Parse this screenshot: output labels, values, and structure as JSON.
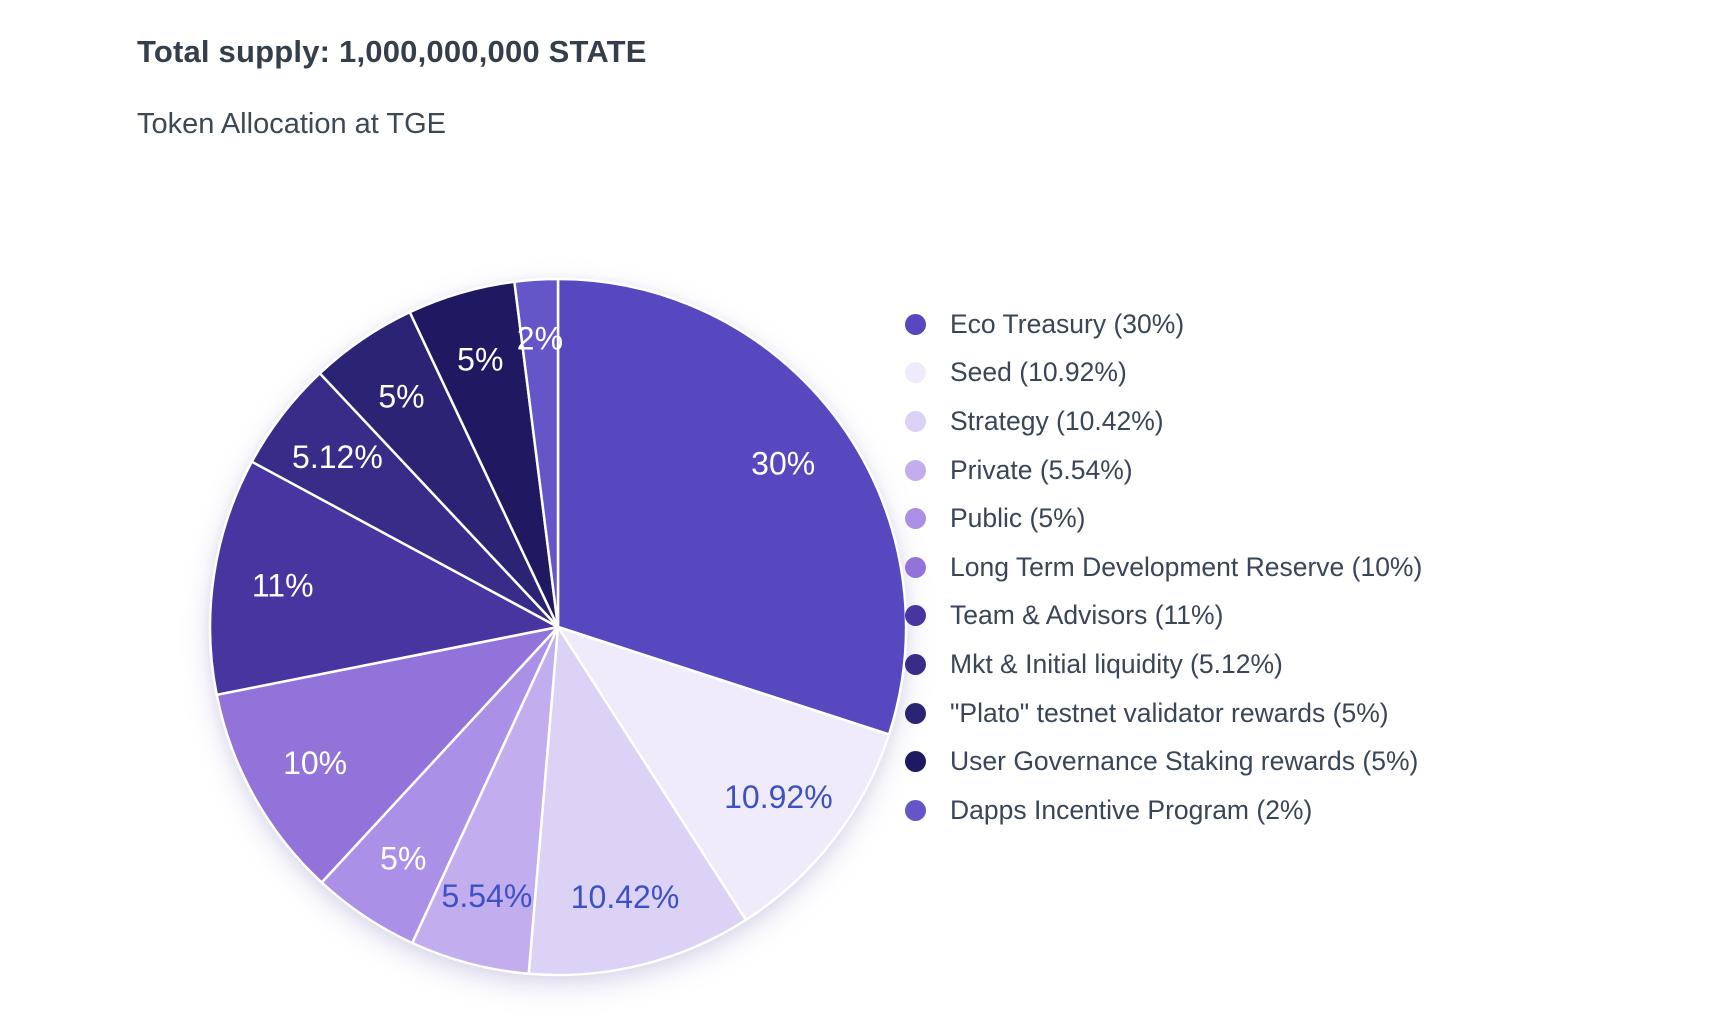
{
  "page": {
    "title": "Total supply: 1,000,000,000 STATE",
    "subtitle": "Token Allocation at TGE"
  },
  "chart_data": {
    "type": "pie",
    "title": "Token Allocation at TGE",
    "total_supply_text": "Total supply: 1,000,000,000 STATE",
    "unit": "%",
    "legend_position": "right",
    "start_angle_deg": 0,
    "direction": "clockwise",
    "slices": [
      {
        "name": "Eco Treasury",
        "value": 30,
        "slice_label": "30%",
        "legend_label": "Eco Treasury (30%)",
        "color": "#5848bf",
        "label_color": "#ffffff"
      },
      {
        "name": "Seed",
        "value": 10.92,
        "slice_label": "10.92%",
        "legend_label": "Seed (10.92%)",
        "color": "#efebfb",
        "label_color": "#3e51c4"
      },
      {
        "name": "Strategy",
        "value": 10.42,
        "slice_label": "10.42%",
        "legend_label": "Strategy (10.42%)",
        "color": "#dbd2f5",
        "label_color": "#3e51c4"
      },
      {
        "name": "Private",
        "value": 5.54,
        "slice_label": "5.54%",
        "legend_label": "Private (5.54%)",
        "color": "#c2aeef",
        "label_color": "#3e51c4"
      },
      {
        "name": "Public",
        "value": 5,
        "slice_label": "5%",
        "legend_label": "Public (5%)",
        "color": "#aa90e6",
        "label_color": "#ffffff"
      },
      {
        "name": "Long Term Development Reserve",
        "value": 10,
        "slice_label": "10%",
        "legend_label": "Long Term Development Reserve (10%)",
        "color": "#9173da",
        "label_color": "#ffffff"
      },
      {
        "name": "Team & Advisors",
        "value": 11,
        "slice_label": "11%",
        "legend_label": "Team & Advisors (11%)",
        "color": "#48359f",
        "label_color": "#ffffff"
      },
      {
        "name": "Mkt & Initial liquidity",
        "value": 5.12,
        "slice_label": "5.12%",
        "legend_label": "Mkt & Initial liquidity (5.12%)",
        "color": "#382c88",
        "label_color": "#ffffff"
      },
      {
        "name": "\"Plato\" testnet validator rewards",
        "value": 5,
        "slice_label": "5%",
        "legend_label": "\"Plato\" testnet validator rewards (5%)",
        "color": "#2b2374",
        "label_color": "#ffffff"
      },
      {
        "name": "User Governance Staking rewards",
        "value": 5,
        "slice_label": "5%",
        "legend_label": "User Governance Staking rewards (5%)",
        "color": "#1e1960",
        "label_color": "#ffffff"
      },
      {
        "name": "Dapps Incentive Program",
        "value": 2,
        "slice_label": "2%",
        "legend_label": "Dapps Incentive Program (2%)",
        "color": "#6456c9",
        "label_color": "#ffffff"
      }
    ]
  },
  "colors": {
    "background": "#ffffff",
    "title_text": "#343f4b",
    "subtitle_text": "#3c4854",
    "legend_text": "#3a4657",
    "slice_border": "#ffffff",
    "light_slice_label_text": "#3e51c4"
  }
}
